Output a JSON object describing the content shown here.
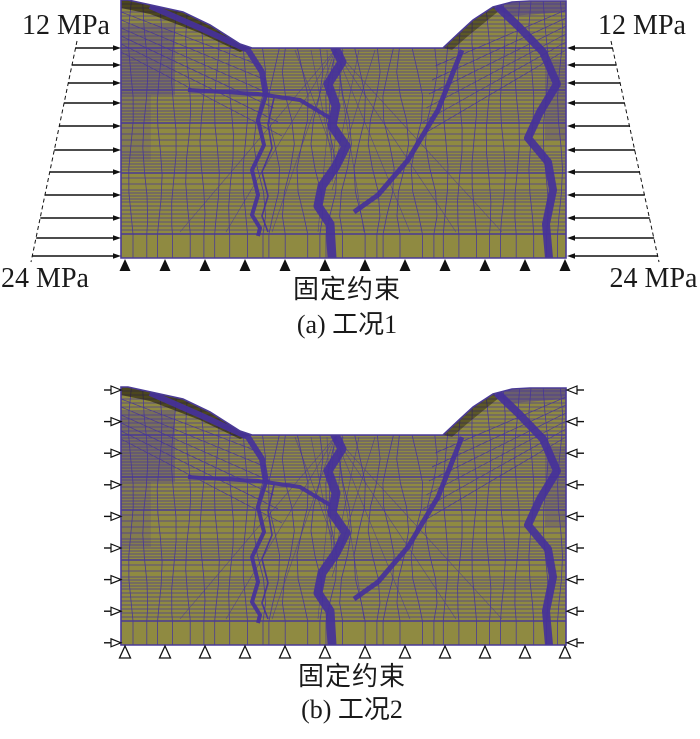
{
  "figure_a": {
    "pressure_top_left": "12 MPa",
    "pressure_top_right": "12 MPa",
    "pressure_bottom_left": "24 MPa",
    "pressure_bottom_right": "24 MPa",
    "constraint_label": "固定约束",
    "caption": "(a) 工况1"
  },
  "figure_b": {
    "constraint_label": "固定约束",
    "caption": "(b) 工况2"
  },
  "colors": {
    "background": "#ffffff",
    "mesh_fill": "#8f8a41",
    "mesh_line": "#4a3a96",
    "fault_band": "#45319a",
    "slope_shade": "#201b07",
    "support_color": "#101010",
    "text_color": "#1a1a1a"
  }
}
